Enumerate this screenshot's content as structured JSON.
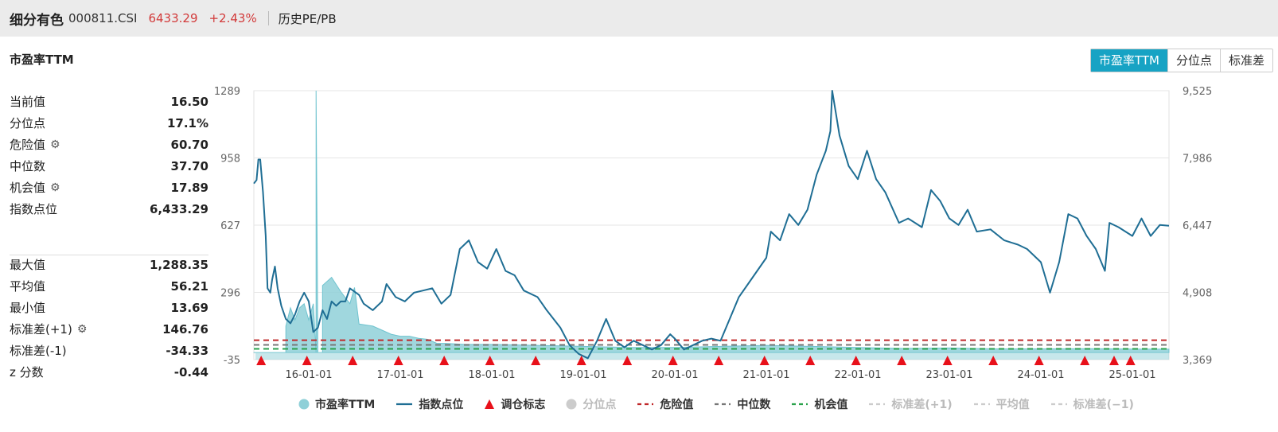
{
  "header": {
    "name": "细分有色",
    "code": "000811.CSI",
    "price": "6433.29",
    "change": "+2.43%",
    "link": "历史PE/PB"
  },
  "section_title": "市盈率TTM",
  "tabs": [
    "市盈率TTM",
    "分位点",
    "标准差"
  ],
  "stats_top": [
    {
      "label": "当前值",
      "value": "16.50",
      "gear": false
    },
    {
      "label": "分位点",
      "value": "17.1%",
      "gear": false
    },
    {
      "label": "危险值",
      "value": "60.70",
      "gear": true
    },
    {
      "label": "中位数",
      "value": "37.70",
      "gear": false
    },
    {
      "label": "机会值",
      "value": "17.89",
      "gear": true
    },
    {
      "label": "指数点位",
      "value": "6,433.29",
      "gear": false
    }
  ],
  "stats_bottom": [
    {
      "label": "最大值",
      "value": "1,288.35",
      "gear": false
    },
    {
      "label": "平均值",
      "value": "56.21",
      "gear": false
    },
    {
      "label": "最小值",
      "value": "13.69",
      "gear": false
    },
    {
      "label": "标准差(+1)",
      "value": "146.76",
      "gear": true
    },
    {
      "label": "标准差(-1)",
      "value": "-34.33",
      "gear": false
    },
    {
      "label": "z 分数",
      "value": "-0.44",
      "gear": false
    }
  ],
  "colors": {
    "pe_fill": "#8fd0d8",
    "index_line": "#1f6e94",
    "marker": "#e8101a",
    "danger": "#c0282a",
    "median": "#777777",
    "opportunity": "#2aa24c",
    "accent": "#17a3c4"
  },
  "chart_data": {
    "type": "line",
    "left_axis": {
      "ticks": [
        "1289",
        "958",
        "627",
        "296",
        "-35"
      ],
      "ylim": [
        -35,
        1289
      ]
    },
    "right_axis": {
      "ticks": [
        "9,525",
        "7,986",
        "6,447",
        "4,908",
        "3,369"
      ],
      "ylim": [
        3369,
        9525
      ]
    },
    "x_ticks": [
      "16-01-01",
      "17-01-01",
      "18-01-01",
      "19-01-01",
      "20-01-01",
      "21-01-01",
      "22-01-01",
      "23-01-01",
      "24-01-01",
      "25-01-01"
    ],
    "xlim": [
      2015.4,
      2025.4
    ],
    "reference_lines": {
      "danger": 60.7,
      "median": 37.7,
      "opportunity": 17.89
    },
    "pe_series": {
      "name": "市盈率TTM",
      "points": [
        [
          2015.4,
          0
        ],
        [
          2015.75,
          0
        ],
        [
          2015.75,
          130
        ],
        [
          2015.8,
          220
        ],
        [
          2015.85,
          160
        ],
        [
          2015.9,
          220
        ],
        [
          2015.95,
          240
        ],
        [
          2016.0,
          160
        ],
        [
          2016.05,
          240
        ],
        [
          2016.08,
          0
        ],
        [
          2016.08,
          1289
        ],
        [
          2016.1,
          0
        ],
        [
          2016.15,
          0
        ],
        [
          2016.15,
          330
        ],
        [
          2016.25,
          370
        ],
        [
          2016.35,
          300
        ],
        [
          2016.45,
          240
        ],
        [
          2016.5,
          320
        ],
        [
          2016.55,
          140
        ],
        [
          2016.7,
          130
        ],
        [
          2016.8,
          110
        ],
        [
          2016.9,
          90
        ],
        [
          2017.0,
          80
        ],
        [
          2017.1,
          80
        ],
        [
          2017.2,
          70
        ],
        [
          2017.3,
          65
        ],
        [
          2017.4,
          45
        ],
        [
          2017.5,
          45
        ],
        [
          2017.7,
          40
        ],
        [
          2018.0,
          40
        ],
        [
          2018.5,
          35
        ],
        [
          2019.0,
          30
        ],
        [
          2019.5,
          25
        ],
        [
          2020.0,
          25
        ],
        [
          2020.5,
          30
        ],
        [
          2021.0,
          35
        ],
        [
          2021.5,
          30
        ],
        [
          2022.0,
          25
        ],
        [
          2022.5,
          20
        ],
        [
          2023.0,
          22
        ],
        [
          2023.5,
          18
        ],
        [
          2024.0,
          18
        ],
        [
          2024.5,
          19
        ],
        [
          2025.0,
          17
        ],
        [
          2025.4,
          16.5
        ]
      ]
    },
    "index_series": {
      "name": "指数点位",
      "points": [
        [
          2015.4,
          7400
        ],
        [
          2015.43,
          7480
        ],
        [
          2015.45,
          7950
        ],
        [
          2015.47,
          7950
        ],
        [
          2015.5,
          7200
        ],
        [
          2015.53,
          6200
        ],
        [
          2015.55,
          5000
        ],
        [
          2015.58,
          4900
        ],
        [
          2015.6,
          5200
        ],
        [
          2015.63,
          5500
        ],
        [
          2015.66,
          5000
        ],
        [
          2015.7,
          4600
        ],
        [
          2015.75,
          4300
        ],
        [
          2015.8,
          4200
        ],
        [
          2015.85,
          4400
        ],
        [
          2015.9,
          4700
        ],
        [
          2015.95,
          4900
        ],
        [
          2016.0,
          4700
        ],
        [
          2016.05,
          4000
        ],
        [
          2016.1,
          4100
        ],
        [
          2016.15,
          4500
        ],
        [
          2016.2,
          4300
        ],
        [
          2016.25,
          4700
        ],
        [
          2016.3,
          4600
        ],
        [
          2016.35,
          4700
        ],
        [
          2016.4,
          4700
        ],
        [
          2016.45,
          5000
        ],
        [
          2016.55,
          4850
        ],
        [
          2016.6,
          4650
        ],
        [
          2016.7,
          4500
        ],
        [
          2016.8,
          4700
        ],
        [
          2016.85,
          5100
        ],
        [
          2016.95,
          4800
        ],
        [
          2017.05,
          4700
        ],
        [
          2017.15,
          4900
        ],
        [
          2017.25,
          4950
        ],
        [
          2017.35,
          5000
        ],
        [
          2017.45,
          4650
        ],
        [
          2017.55,
          4850
        ],
        [
          2017.65,
          5900
        ],
        [
          2017.75,
          6100
        ],
        [
          2017.85,
          5600
        ],
        [
          2017.95,
          5450
        ],
        [
          2018.05,
          5900
        ],
        [
          2018.15,
          5400
        ],
        [
          2018.25,
          5300
        ],
        [
          2018.35,
          4950
        ],
        [
          2018.5,
          4800
        ],
        [
          2018.6,
          4500
        ],
        [
          2018.75,
          4100
        ],
        [
          2018.85,
          3700
        ],
        [
          2018.95,
          3500
        ],
        [
          2019.05,
          3400
        ],
        [
          2019.15,
          3800
        ],
        [
          2019.25,
          4300
        ],
        [
          2019.35,
          3800
        ],
        [
          2019.45,
          3650
        ],
        [
          2019.55,
          3800
        ],
        [
          2019.65,
          3700
        ],
        [
          2019.75,
          3600
        ],
        [
          2019.85,
          3700
        ],
        [
          2019.95,
          3950
        ],
        [
          2020.0,
          3850
        ],
        [
          2020.1,
          3600
        ],
        [
          2020.2,
          3700
        ],
        [
          2020.3,
          3800
        ],
        [
          2020.4,
          3850
        ],
        [
          2020.5,
          3800
        ],
        [
          2020.6,
          4300
        ],
        [
          2020.7,
          4800
        ],
        [
          2020.8,
          5100
        ],
        [
          2020.9,
          5400
        ],
        [
          2021.0,
          5700
        ],
        [
          2021.05,
          6300
        ],
        [
          2021.15,
          6100
        ],
        [
          2021.25,
          6700
        ],
        [
          2021.35,
          6450
        ],
        [
          2021.45,
          6800
        ],
        [
          2021.55,
          7600
        ],
        [
          2021.65,
          8150
        ],
        [
          2021.7,
          8600
        ],
        [
          2021.72,
          9525
        ],
        [
          2021.8,
          8500
        ],
        [
          2021.9,
          7800
        ],
        [
          2022.0,
          7500
        ],
        [
          2022.1,
          8150
        ],
        [
          2022.2,
          7500
        ],
        [
          2022.3,
          7200
        ],
        [
          2022.45,
          6500
        ],
        [
          2022.55,
          6600
        ],
        [
          2022.7,
          6400
        ],
        [
          2022.8,
          7250
        ],
        [
          2022.9,
          7000
        ],
        [
          2023.0,
          6600
        ],
        [
          2023.1,
          6450
        ],
        [
          2023.2,
          6800
        ],
        [
          2023.3,
          6300
        ],
        [
          2023.45,
          6350
        ],
        [
          2023.6,
          6100
        ],
        [
          2023.75,
          6000
        ],
        [
          2023.85,
          5900
        ],
        [
          2024.0,
          5600
        ],
        [
          2024.1,
          4900
        ],
        [
          2024.2,
          5600
        ],
        [
          2024.3,
          6700
        ],
        [
          2024.4,
          6600
        ],
        [
          2024.5,
          6200
        ],
        [
          2024.6,
          5900
        ],
        [
          2024.7,
          5400
        ],
        [
          2024.75,
          6500
        ],
        [
          2024.85,
          6400
        ],
        [
          2025.0,
          6200
        ],
        [
          2025.1,
          6600
        ],
        [
          2025.2,
          6200
        ],
        [
          2025.3,
          6450
        ],
        [
          2025.4,
          6433
        ]
      ]
    },
    "rebalance_markers_x": [
      2015.48,
      2015.98,
      2016.48,
      2016.98,
      2017.48,
      2017.98,
      2018.48,
      2018.98,
      2019.48,
      2019.98,
      2020.48,
      2020.98,
      2021.48,
      2021.98,
      2022.48,
      2022.98,
      2023.48,
      2023.98,
      2024.48,
      2024.8,
      2024.98
    ]
  },
  "legend": [
    {
      "key": "pe",
      "label": "市盈率TTM",
      "symbol": "circle",
      "color": "#8fd0d8",
      "active": true
    },
    {
      "key": "index",
      "label": "指数点位",
      "symbol": "line",
      "color": "#1f6e94",
      "active": true
    },
    {
      "key": "marker",
      "label": "调仓标志",
      "symbol": "triangle",
      "color": "#e8101a",
      "active": true
    },
    {
      "key": "pct",
      "label": "分位点",
      "symbol": "circle",
      "color": "#cccccc",
      "active": false
    },
    {
      "key": "danger",
      "label": "危险值",
      "symbol": "dash",
      "color": "#c0282a",
      "active": true
    },
    {
      "key": "median",
      "label": "中位数",
      "symbol": "dash",
      "color": "#777777",
      "active": true
    },
    {
      "key": "opp",
      "label": "机会值",
      "symbol": "dash",
      "color": "#2aa24c",
      "active": true
    },
    {
      "key": "sd_plus",
      "label": "标准差(+1)",
      "symbol": "dash",
      "color": "#cccccc",
      "active": false
    },
    {
      "key": "mean",
      "label": "平均值",
      "symbol": "dash",
      "color": "#cccccc",
      "active": false
    },
    {
      "key": "sd_minus",
      "label": "标准差(−1)",
      "symbol": "dash",
      "color": "#cccccc",
      "active": false
    }
  ]
}
